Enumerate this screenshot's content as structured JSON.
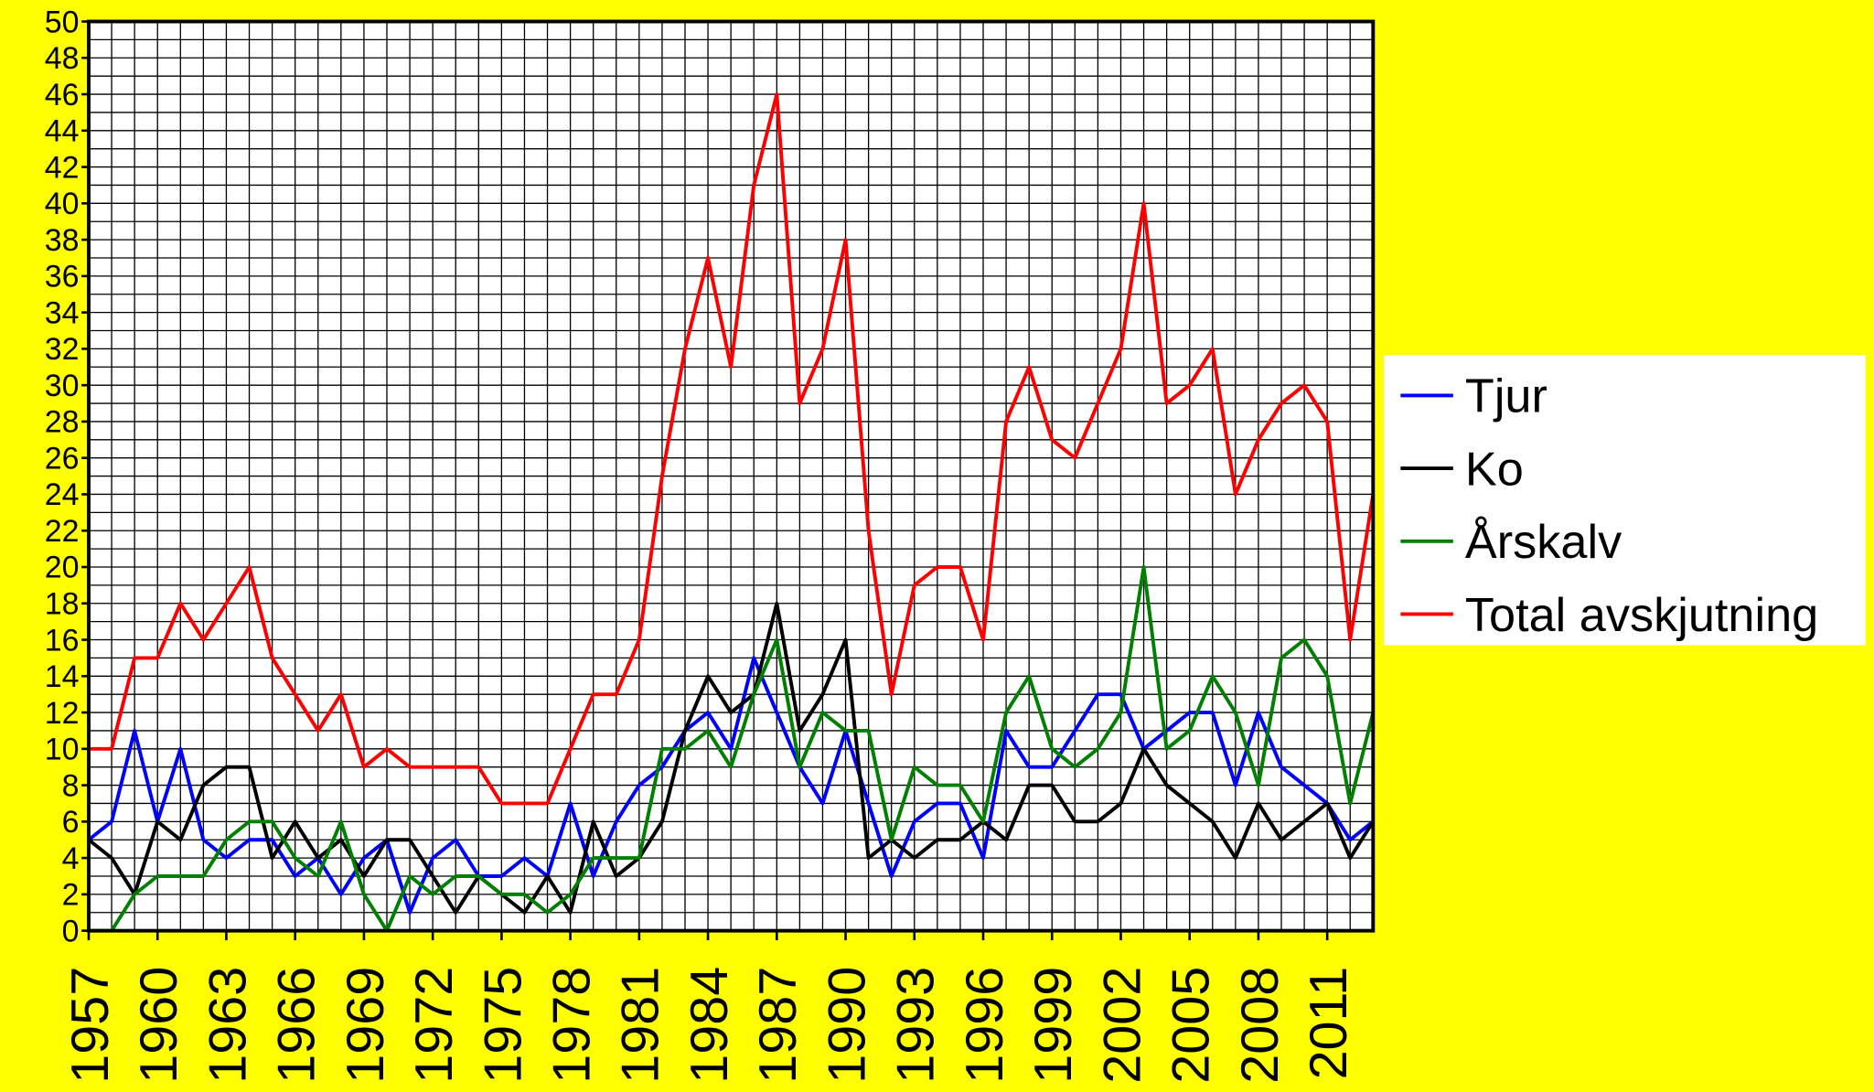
{
  "chart_data": {
    "type": "line",
    "x": [
      1957,
      1958,
      1959,
      1960,
      1961,
      1962,
      1963,
      1964,
      1965,
      1966,
      1967,
      1968,
      1969,
      1970,
      1971,
      1972,
      1973,
      1974,
      1975,
      1976,
      1977,
      1978,
      1979,
      1980,
      1981,
      1982,
      1983,
      1984,
      1985,
      1986,
      1987,
      1988,
      1989,
      1990,
      1991,
      1992,
      1993,
      1994,
      1995,
      1996,
      1997,
      1998,
      1999,
      2000,
      2001,
      2002,
      2003,
      2004,
      2005,
      2006,
      2007,
      2008,
      2009,
      2010,
      2011,
      2012,
      2013
    ],
    "xlim": [
      1957,
      2013
    ],
    "xticks": [
      1957,
      1960,
      1963,
      1966,
      1969,
      1972,
      1975,
      1978,
      1981,
      1984,
      1987,
      1990,
      1993,
      1996,
      1999,
      2002,
      2005,
      2008,
      2011
    ],
    "ylim": [
      0,
      50
    ],
    "yticks": [
      0,
      2,
      4,
      6,
      8,
      10,
      12,
      14,
      16,
      18,
      20,
      22,
      24,
      26,
      28,
      30,
      32,
      34,
      36,
      38,
      40,
      42,
      44,
      46,
      48,
      50
    ],
    "grid": true,
    "legend": "right",
    "series": [
      {
        "name": "Tjur",
        "color": "#0000ff",
        "values": [
          5,
          6,
          11,
          6,
          10,
          5,
          4,
          5,
          5,
          3,
          4,
          2,
          4,
          5,
          1,
          4,
          5,
          3,
          3,
          4,
          3,
          7,
          3,
          6,
          8,
          9,
          11,
          12,
          10,
          15,
          12,
          9,
          7,
          11,
          7,
          3,
          6,
          7,
          7,
          4,
          11,
          9,
          9,
          11,
          13,
          13,
          10,
          11,
          12,
          12,
          8,
          12,
          9,
          8,
          7,
          5,
          6
        ]
      },
      {
        "name": "Ko",
        "color": "#000000",
        "values": [
          5,
          4,
          2,
          6,
          5,
          8,
          9,
          9,
          4,
          6,
          4,
          5,
          3,
          5,
          5,
          3,
          1,
          3,
          2,
          1,
          3,
          1,
          6,
          3,
          4,
          6,
          11,
          14,
          12,
          13,
          18,
          11,
          13,
          16,
          4,
          5,
          4,
          5,
          5,
          6,
          5,
          8,
          8,
          6,
          6,
          7,
          10,
          8,
          7,
          6,
          4,
          7,
          5,
          6,
          7,
          4,
          6
        ]
      },
      {
        "name": "Årskalv",
        "color": "#008000",
        "values": [
          0,
          0,
          2,
          3,
          3,
          3,
          5,
          6,
          6,
          4,
          3,
          6,
          2,
          0,
          3,
          2,
          3,
          3,
          2,
          2,
          1,
          2,
          4,
          4,
          4,
          10,
          10,
          11,
          9,
          13,
          16,
          9,
          12,
          11,
          11,
          5,
          9,
          8,
          8,
          6,
          12,
          14,
          10,
          9,
          10,
          12,
          20,
          10,
          11,
          14,
          12,
          8,
          15,
          16,
          14,
          7,
          12
        ]
      },
      {
        "name": "Total avskjutning",
        "color": "#ff0000",
        "values": [
          10,
          10,
          15,
          15,
          18,
          16,
          18,
          20,
          15,
          13,
          11,
          13,
          9,
          10,
          9,
          9,
          9,
          9,
          7,
          7,
          7,
          10,
          13,
          13,
          16,
          25,
          32,
          37,
          31,
          41,
          46,
          29,
          32,
          38,
          22,
          13,
          19,
          20,
          20,
          16,
          28,
          31,
          27,
          26,
          29,
          32,
          40,
          29,
          30,
          32,
          24,
          27,
          29,
          30,
          28,
          16,
          24
        ]
      }
    ]
  }
}
